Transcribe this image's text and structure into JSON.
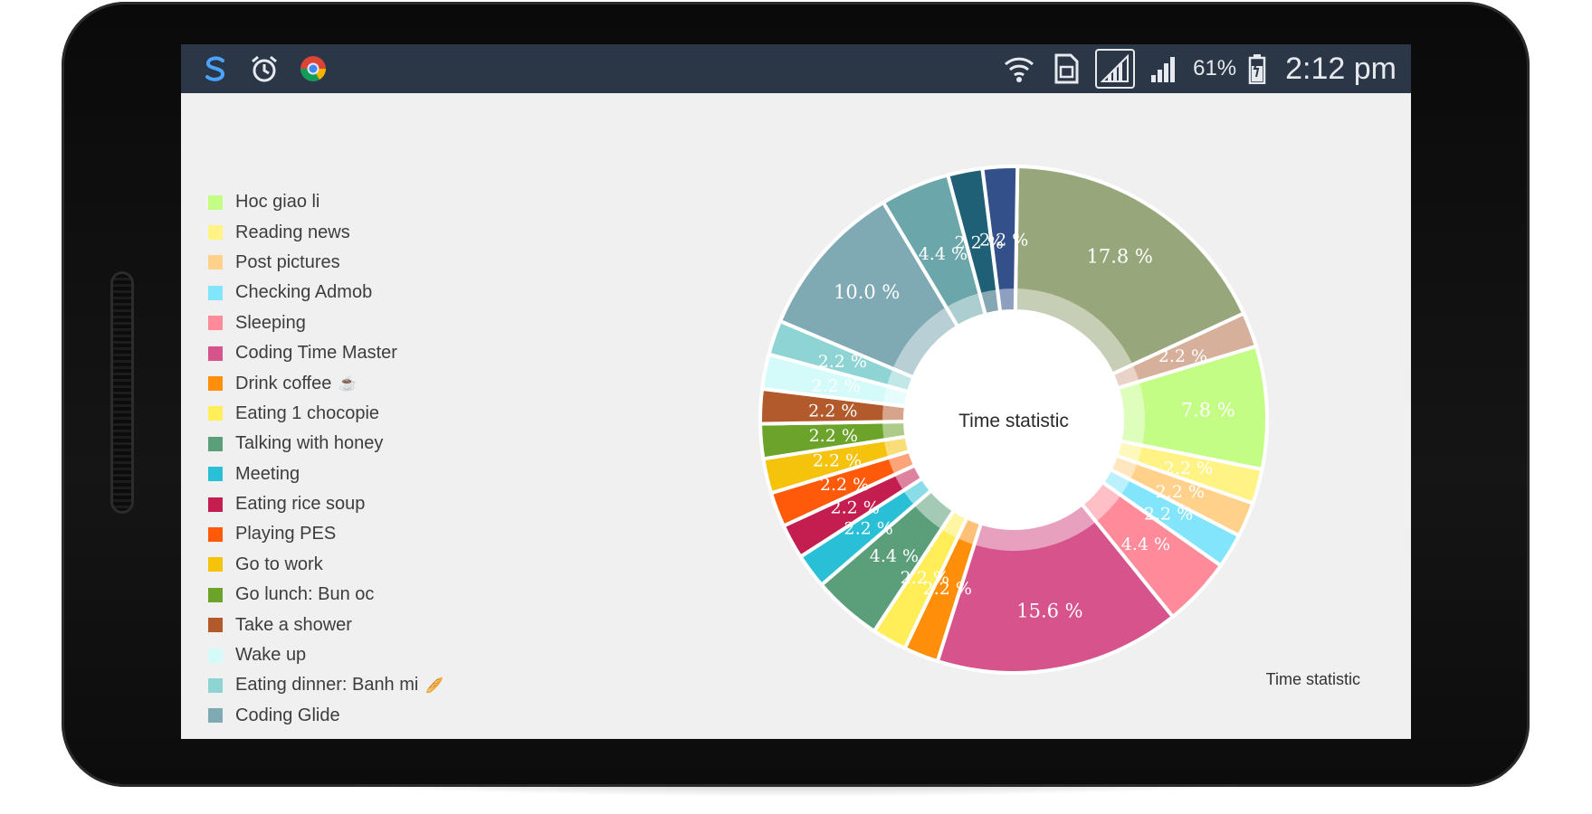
{
  "status_bar": {
    "icons_left": [
      "s-app-icon",
      "alarm-clock-icon",
      "chrome-icon"
    ],
    "icons_right": [
      "wifi-icon",
      "sim-card-icon",
      "signal-icon",
      "signal-icon",
      "battery-icon"
    ],
    "battery_percent": "61%",
    "time": "2:12 pm"
  },
  "legend": {
    "items": [
      {
        "label": "Hoc giao li",
        "color": "#c4fd85"
      },
      {
        "label": "Reading news",
        "color": "#fff385"
      },
      {
        "label": "Post pictures",
        "color": "#ffd18b"
      },
      {
        "label": "Checking Admob",
        "color": "#83e5fc"
      },
      {
        "label": "Sleeping",
        "color": "#ff8a9a"
      },
      {
        "label": "Coding Time Master",
        "color": "#d6538b"
      },
      {
        "label": "Drink coffee",
        "color": "#ff8f0a",
        "emoji": "☕"
      },
      {
        "label": "Eating 1 chocopie",
        "color": "#ffee58"
      },
      {
        "label": "Talking with honey",
        "color": "#5a9e7a"
      },
      {
        "label": "Meeting",
        "color": "#29bfd6"
      },
      {
        "label": "Eating rice soup",
        "color": "#c41e51"
      },
      {
        "label": "Playing PES",
        "color": "#ff5a0a"
      },
      {
        "label": "Go to work",
        "color": "#f5c20c"
      },
      {
        "label": "Go lunch: Bun oc",
        "color": "#6ba32b"
      },
      {
        "label": "Take a shower",
        "color": "#b35a2c"
      },
      {
        "label": "Wake up",
        "color": "#d4fafa"
      },
      {
        "label": "Eating dinner: Banh mi",
        "color": "#8fd4d4",
        "emoji": "🥖"
      },
      {
        "label": "Coding Glide",
        "color": "#7fa9b3"
      }
    ]
  },
  "chart_data": {
    "type": "pie",
    "center_label": "Time statistic",
    "footer_label": "Time statistic",
    "slices": [
      {
        "value": 17.8,
        "label": "17.8 %",
        "color": "#98a77b"
      },
      {
        "value": 2.2,
        "label": "2.2 %",
        "color": "#d7b09c"
      },
      {
        "value": 7.8,
        "label": "7.8 %",
        "color": "#c4fd85"
      },
      {
        "value": 2.2,
        "label": "2.2 %",
        "color": "#fff385"
      },
      {
        "value": 2.2,
        "label": "2.2 %",
        "color": "#ffd18b"
      },
      {
        "value": 2.2,
        "label": "2.2 %",
        "color": "#83e5fc"
      },
      {
        "value": 4.4,
        "label": "4.4 %",
        "color": "#ff8a9a"
      },
      {
        "value": 15.6,
        "label": "15.6 %",
        "color": "#d6538b"
      },
      {
        "value": 2.2,
        "label": "2.2 %",
        "color": "#ff8f0a"
      },
      {
        "value": 2.2,
        "label": "2.2 %",
        "color": "#ffee58"
      },
      {
        "value": 4.4,
        "label": "4.4 %",
        "color": "#5a9e7a"
      },
      {
        "value": 2.2,
        "label": "2.2 %",
        "color": "#29bfd6"
      },
      {
        "value": 2.2,
        "label": "2.2 %",
        "color": "#c41e51"
      },
      {
        "value": 2.2,
        "label": "2.2 %",
        "color": "#ff5a0a"
      },
      {
        "value": 2.2,
        "label": "2.2 %",
        "color": "#f5c20c"
      },
      {
        "value": 2.2,
        "label": "2.2 %",
        "color": "#6ba32b"
      },
      {
        "value": 2.2,
        "label": "2.2 %",
        "color": "#b35a2c"
      },
      {
        "value": 2.2,
        "label": "2.2 %",
        "color": "#d4fafa"
      },
      {
        "value": 2.2,
        "label": "2.2 %",
        "color": "#8fd4d4"
      },
      {
        "value": 10.0,
        "label": "10.0 %",
        "color": "#7fa9b3"
      },
      {
        "value": 4.4,
        "label": "4.4 %",
        "color": "#6aa6aa"
      },
      {
        "value": 2.2,
        "label": "2.2 %",
        "color": "#1f6076"
      },
      {
        "value": 2.2,
        "label": "2.2 %",
        "color": "#34508a"
      }
    ]
  }
}
